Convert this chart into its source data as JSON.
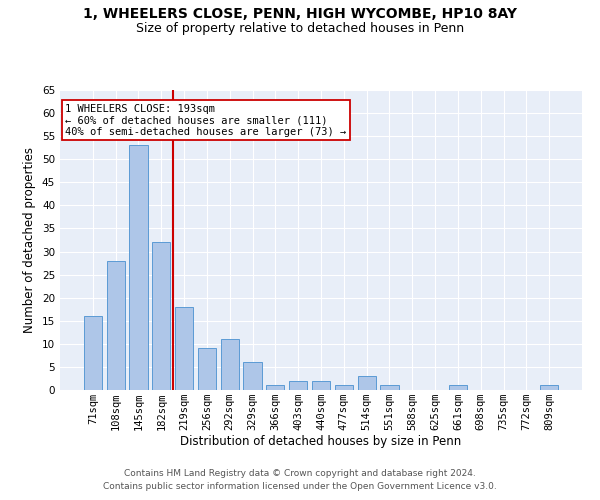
{
  "title1": "1, WHEELERS CLOSE, PENN, HIGH WYCOMBE, HP10 8AY",
  "title2": "Size of property relative to detached houses in Penn",
  "xlabel": "Distribution of detached houses by size in Penn",
  "ylabel": "Number of detached properties",
  "categories": [
    "71sqm",
    "108sqm",
    "145sqm",
    "182sqm",
    "219sqm",
    "256sqm",
    "292sqm",
    "329sqm",
    "366sqm",
    "403sqm",
    "440sqm",
    "477sqm",
    "514sqm",
    "551sqm",
    "588sqm",
    "625sqm",
    "661sqm",
    "698sqm",
    "735sqm",
    "772sqm",
    "809sqm"
  ],
  "values": [
    16,
    28,
    53,
    32,
    18,
    9,
    11,
    6,
    1,
    2,
    2,
    1,
    3,
    1,
    0,
    0,
    1,
    0,
    0,
    0,
    1
  ],
  "bar_color": "#aec6e8",
  "bar_edge_color": "#5b9bd5",
  "vline_color": "#cc0000",
  "annotation_text": "1 WHEELERS CLOSE: 193sqm\n← 60% of detached houses are smaller (111)\n40% of semi-detached houses are larger (73) →",
  "annotation_box_color": "#ffffff",
  "annotation_box_edge_color": "#cc0000",
  "ylim": [
    0,
    65
  ],
  "yticks": [
    0,
    5,
    10,
    15,
    20,
    25,
    30,
    35,
    40,
    45,
    50,
    55,
    60,
    65
  ],
  "plot_bg_color": "#e8eef8",
  "footer1": "Contains HM Land Registry data © Crown copyright and database right 2024.",
  "footer2": "Contains public sector information licensed under the Open Government Licence v3.0.",
  "title1_fontsize": 10,
  "title2_fontsize": 9,
  "axis_label_fontsize": 8.5,
  "tick_fontsize": 7.5,
  "annotation_fontsize": 7.5,
  "footer_fontsize": 6.5,
  "grid_color": "#ffffff",
  "vline_pos": 3.5
}
